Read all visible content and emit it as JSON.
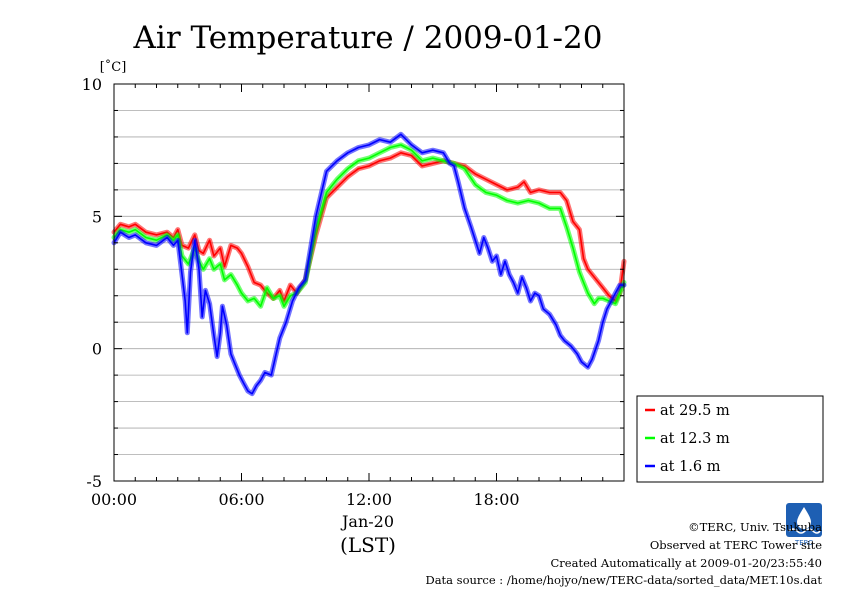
{
  "chart_data": {
    "type": "line",
    "title": "Air Temperature / 2009-01-20",
    "ylabel": "[˚C]",
    "xlabel": "(LST)",
    "date_label": "Jan-20",
    "xlim": [
      0,
      24
    ],
    "ylim": [
      -5,
      10
    ],
    "grid": true,
    "legend_position": "right",
    "x_ticks": [
      {
        "value": 0,
        "label": "00:00"
      },
      {
        "value": 6,
        "label": "06:00"
      },
      {
        "value": 12,
        "label": "12:00"
      },
      {
        "value": 18,
        "label": "18:00"
      }
    ],
    "y_ticks": [
      {
        "value": -5,
        "label": "-5"
      },
      {
        "value": 0,
        "label": "0"
      },
      {
        "value": 5,
        "label": "5"
      },
      {
        "value": 10,
        "label": "10"
      }
    ],
    "series": [
      {
        "name": "at 29.5 m",
        "color": "#ff0000",
        "points": [
          [
            0,
            4.4
          ],
          [
            0.3,
            4.7
          ],
          [
            0.7,
            4.6
          ],
          [
            1.0,
            4.7
          ],
          [
            1.5,
            4.4
          ],
          [
            2.0,
            4.3
          ],
          [
            2.5,
            4.4
          ],
          [
            2.8,
            4.2
          ],
          [
            3.0,
            4.5
          ],
          [
            3.2,
            3.9
          ],
          [
            3.5,
            3.8
          ],
          [
            3.8,
            4.3
          ],
          [
            4.0,
            3.7
          ],
          [
            4.2,
            3.6
          ],
          [
            4.5,
            4.1
          ],
          [
            4.7,
            3.5
          ],
          [
            5.0,
            3.8
          ],
          [
            5.2,
            3.1
          ],
          [
            5.5,
            3.9
          ],
          [
            5.8,
            3.8
          ],
          [
            6.0,
            3.6
          ],
          [
            6.3,
            3.1
          ],
          [
            6.6,
            2.5
          ],
          [
            6.9,
            2.4
          ],
          [
            7.2,
            2.1
          ],
          [
            7.5,
            1.9
          ],
          [
            7.8,
            2.2
          ],
          [
            8.0,
            1.8
          ],
          [
            8.3,
            2.4
          ],
          [
            8.6,
            2.1
          ],
          [
            9.0,
            2.6
          ],
          [
            9.5,
            4.3
          ],
          [
            10.0,
            5.7
          ],
          [
            10.5,
            6.1
          ],
          [
            11.0,
            6.5
          ],
          [
            11.5,
            6.8
          ],
          [
            12.0,
            6.9
          ],
          [
            12.5,
            7.1
          ],
          [
            13.0,
            7.2
          ],
          [
            13.5,
            7.4
          ],
          [
            14.0,
            7.3
          ],
          [
            14.5,
            6.9
          ],
          [
            15.0,
            7.0
          ],
          [
            15.5,
            7.1
          ],
          [
            16.0,
            7.0
          ],
          [
            16.5,
            6.9
          ],
          [
            17.0,
            6.6
          ],
          [
            17.5,
            6.4
          ],
          [
            18.0,
            6.2
          ],
          [
            18.5,
            6.0
          ],
          [
            19.0,
            6.1
          ],
          [
            19.3,
            6.3
          ],
          [
            19.6,
            5.9
          ],
          [
            20.0,
            6.0
          ],
          [
            20.5,
            5.9
          ],
          [
            21.0,
            5.9
          ],
          [
            21.3,
            5.6
          ],
          [
            21.6,
            4.8
          ],
          [
            21.9,
            4.5
          ],
          [
            22.1,
            3.4
          ],
          [
            22.3,
            3.0
          ],
          [
            22.6,
            2.7
          ],
          [
            23.0,
            2.3
          ],
          [
            23.3,
            2.0
          ],
          [
            23.6,
            1.8
          ],
          [
            23.8,
            2.1
          ],
          [
            24.0,
            3.3
          ]
        ]
      },
      {
        "name": "at 12.3 m",
        "color": "#00ff00",
        "points": [
          [
            0,
            4.2
          ],
          [
            0.3,
            4.5
          ],
          [
            0.7,
            4.4
          ],
          [
            1.0,
            4.5
          ],
          [
            1.5,
            4.2
          ],
          [
            2.0,
            4.1
          ],
          [
            2.5,
            4.3
          ],
          [
            2.8,
            4.1
          ],
          [
            3.0,
            4.3
          ],
          [
            3.2,
            3.5
          ],
          [
            3.5,
            3.2
          ],
          [
            3.8,
            3.8
          ],
          [
            4.0,
            3.3
          ],
          [
            4.2,
            3.0
          ],
          [
            4.5,
            3.4
          ],
          [
            4.7,
            3.0
          ],
          [
            5.0,
            3.2
          ],
          [
            5.2,
            2.6
          ],
          [
            5.5,
            2.8
          ],
          [
            5.8,
            2.4
          ],
          [
            6.0,
            2.1
          ],
          [
            6.3,
            1.8
          ],
          [
            6.6,
            1.9
          ],
          [
            6.9,
            1.6
          ],
          [
            7.2,
            2.3
          ],
          [
            7.5,
            1.9
          ],
          [
            7.8,
            2.0
          ],
          [
            8.0,
            1.6
          ],
          [
            8.3,
            2.0
          ],
          [
            8.6,
            2.1
          ],
          [
            9.0,
            2.5
          ],
          [
            9.5,
            4.5
          ],
          [
            10.0,
            5.9
          ],
          [
            10.5,
            6.4
          ],
          [
            11.0,
            6.8
          ],
          [
            11.5,
            7.1
          ],
          [
            12.0,
            7.2
          ],
          [
            12.5,
            7.4
          ],
          [
            13.0,
            7.6
          ],
          [
            13.5,
            7.7
          ],
          [
            14.0,
            7.5
          ],
          [
            14.5,
            7.1
          ],
          [
            15.0,
            7.2
          ],
          [
            15.5,
            7.1
          ],
          [
            16.0,
            7.0
          ],
          [
            16.5,
            6.8
          ],
          [
            17.0,
            6.2
          ],
          [
            17.5,
            5.9
          ],
          [
            18.0,
            5.8
          ],
          [
            18.5,
            5.6
          ],
          [
            19.0,
            5.5
          ],
          [
            19.5,
            5.6
          ],
          [
            20.0,
            5.5
          ],
          [
            20.5,
            5.3
          ],
          [
            21.0,
            5.3
          ],
          [
            21.3,
            4.6
          ],
          [
            21.6,
            3.8
          ],
          [
            21.9,
            2.9
          ],
          [
            22.1,
            2.5
          ],
          [
            22.3,
            2.1
          ],
          [
            22.6,
            1.7
          ],
          [
            22.8,
            1.9
          ],
          [
            23.0,
            1.9
          ],
          [
            23.3,
            1.8
          ],
          [
            23.6,
            1.7
          ],
          [
            23.8,
            2.1
          ],
          [
            24.0,
            2.5
          ]
        ]
      },
      {
        "name": "at 1.6 m",
        "color": "#0000ff",
        "points": [
          [
            0,
            4.0
          ],
          [
            0.3,
            4.4
          ],
          [
            0.7,
            4.2
          ],
          [
            1.0,
            4.3
          ],
          [
            1.5,
            4.0
          ],
          [
            2.0,
            3.9
          ],
          [
            2.5,
            4.2
          ],
          [
            2.8,
            3.9
          ],
          [
            3.0,
            4.1
          ],
          [
            3.2,
            2.8
          ],
          [
            3.35,
            1.8
          ],
          [
            3.45,
            0.6
          ],
          [
            3.6,
            2.9
          ],
          [
            3.8,
            4.1
          ],
          [
            4.0,
            3.0
          ],
          [
            4.15,
            1.2
          ],
          [
            4.3,
            2.2
          ],
          [
            4.5,
            1.7
          ],
          [
            4.7,
            0.5
          ],
          [
            4.85,
            -0.3
          ],
          [
            5.0,
            0.6
          ],
          [
            5.1,
            1.6
          ],
          [
            5.3,
            0.9
          ],
          [
            5.5,
            -0.2
          ],
          [
            5.7,
            -0.6
          ],
          [
            5.9,
            -1.0
          ],
          [
            6.1,
            -1.3
          ],
          [
            6.3,
            -1.6
          ],
          [
            6.5,
            -1.7
          ],
          [
            6.7,
            -1.4
          ],
          [
            6.9,
            -1.2
          ],
          [
            7.1,
            -0.9
          ],
          [
            7.4,
            -1.0
          ],
          [
            7.6,
            -0.3
          ],
          [
            7.8,
            0.4
          ],
          [
            8.1,
            1.0
          ],
          [
            8.4,
            1.8
          ],
          [
            8.7,
            2.3
          ],
          [
            9.0,
            2.6
          ],
          [
            9.5,
            5.0
          ],
          [
            10.0,
            6.7
          ],
          [
            10.5,
            7.1
          ],
          [
            11.0,
            7.4
          ],
          [
            11.5,
            7.6
          ],
          [
            12.0,
            7.7
          ],
          [
            12.5,
            7.9
          ],
          [
            13.0,
            7.8
          ],
          [
            13.5,
            8.1
          ],
          [
            14.0,
            7.7
          ],
          [
            14.5,
            7.4
          ],
          [
            15.0,
            7.5
          ],
          [
            15.5,
            7.4
          ],
          [
            15.8,
            7.0
          ],
          [
            16.0,
            6.9
          ],
          [
            16.2,
            6.3
          ],
          [
            16.5,
            5.3
          ],
          [
            16.8,
            4.6
          ],
          [
            17.0,
            4.1
          ],
          [
            17.2,
            3.6
          ],
          [
            17.4,
            4.2
          ],
          [
            17.6,
            3.8
          ],
          [
            17.8,
            3.3
          ],
          [
            18.0,
            3.5
          ],
          [
            18.2,
            2.8
          ],
          [
            18.4,
            3.3
          ],
          [
            18.6,
            2.8
          ],
          [
            18.8,
            2.5
          ],
          [
            19.0,
            2.1
          ],
          [
            19.2,
            2.7
          ],
          [
            19.4,
            2.3
          ],
          [
            19.6,
            1.8
          ],
          [
            19.8,
            2.1
          ],
          [
            20.0,
            2.0
          ],
          [
            20.2,
            1.5
          ],
          [
            20.5,
            1.3
          ],
          [
            20.8,
            0.9
          ],
          [
            21.0,
            0.5
          ],
          [
            21.2,
            0.3
          ],
          [
            21.5,
            0.1
          ],
          [
            21.8,
            -0.2
          ],
          [
            22.0,
            -0.5
          ],
          [
            22.3,
            -0.7
          ],
          [
            22.5,
            -0.4
          ],
          [
            22.8,
            0.3
          ],
          [
            23.0,
            1.0
          ],
          [
            23.2,
            1.5
          ],
          [
            23.4,
            1.8
          ],
          [
            23.6,
            2.1
          ],
          [
            23.8,
            2.4
          ],
          [
            24.0,
            2.4
          ]
        ]
      }
    ]
  },
  "footer": {
    "copyright": "©TERC, Univ. Tsukuba",
    "observed": "Observed at TERC Tower site",
    "created": "Created Automatically at 2009-01-20/23:55:40",
    "source": "Data source : /home/hojyo/new/TERC-data/sorted_data/MET.10s.dat",
    "logo_text": "TERC"
  }
}
